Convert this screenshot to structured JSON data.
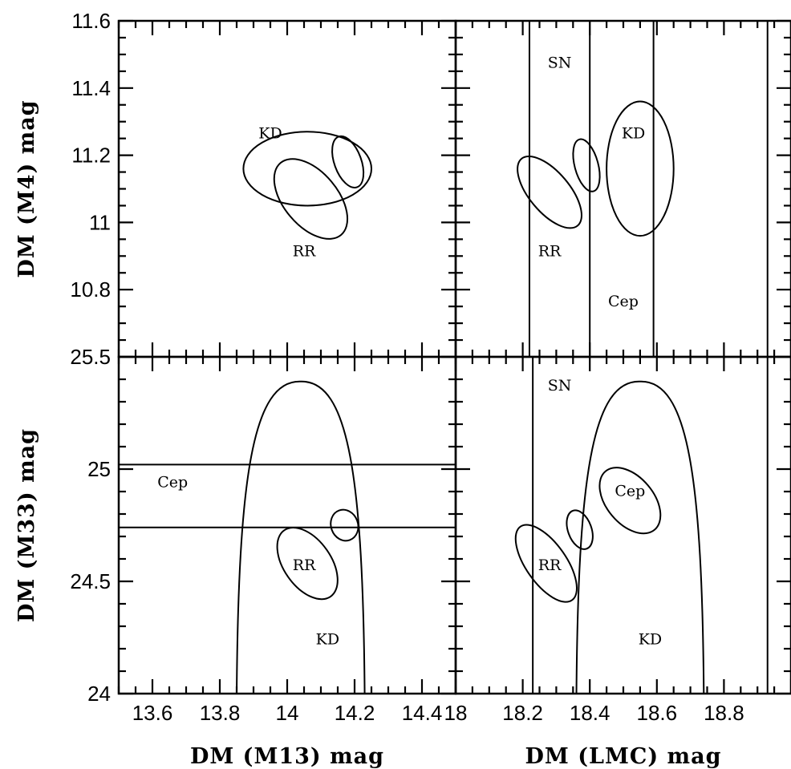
{
  "chart_data": [
    {
      "type": "contour",
      "panel": "top-left",
      "xlim": [
        13.5,
        14.5
      ],
      "ylim": [
        10.6,
        11.6
      ],
      "xticks": [],
      "yticks": [
        "10.8",
        "11",
        "11.2",
        "11.4",
        "11.6"
      ],
      "ylabel": "DM (M4) mag",
      "xlabel": "",
      "annotations": [
        {
          "text": "KD",
          "x": 13.95,
          "y": 11.25
        },
        {
          "text": "RR",
          "x": 14.05,
          "y": 10.9
        }
      ],
      "contours": [
        {
          "name": "KD",
          "cx": 14.06,
          "cy": 11.16,
          "rx": 0.19,
          "ry": 0.11,
          "angle": 0
        },
        {
          "name": "RR",
          "cx": 14.07,
          "cy": 11.07,
          "rx": 0.08,
          "ry": 0.14,
          "angle": -40
        },
        {
          "name": "RR-KD",
          "cx": 14.18,
          "cy": 11.18,
          "rx": 0.04,
          "ry": 0.08,
          "angle": -20
        }
      ]
    },
    {
      "type": "contour",
      "panel": "top-right",
      "xlim": [
        18.0,
        19.0
      ],
      "ylim": [
        10.6,
        11.6
      ],
      "xticks": [],
      "yticks": [],
      "annotations": [
        {
          "text": "SN",
          "x": 18.31,
          "y": 11.46
        },
        {
          "text": "KD",
          "x": 18.53,
          "y": 11.25
        },
        {
          "text": "RR",
          "x": 18.28,
          "y": 10.9
        },
        {
          "text": "Cep",
          "x": 18.5,
          "y": 10.75
        }
      ],
      "vertical_lines": [
        18.22,
        18.4,
        18.59,
        18.93
      ],
      "contours": [
        {
          "name": "RR",
          "cx": 18.28,
          "cy": 11.09,
          "rx": 0.06,
          "ry": 0.13,
          "angle": -40
        },
        {
          "name": "RR-KD",
          "cx": 18.39,
          "cy": 11.17,
          "rx": 0.035,
          "ry": 0.08,
          "angle": -15
        },
        {
          "name": "KD",
          "cx": 18.55,
          "cy": 11.16,
          "rx": 0.1,
          "ry": 0.2,
          "angle": 0
        }
      ]
    },
    {
      "type": "contour",
      "panel": "bottom-left",
      "xlim": [
        13.5,
        14.5
      ],
      "ylim": [
        24.0,
        25.5
      ],
      "xticks": [
        "13.6",
        "13.8",
        "14",
        "14.2",
        "14.4"
      ],
      "yticks": [
        "24",
        "24.5",
        "25",
        "25.5"
      ],
      "xlabel": "DM (M13) mag",
      "ylabel": "DM (M33) mag",
      "annotations": [
        {
          "text": "Cep",
          "x": 13.66,
          "y": 24.92
        },
        {
          "text": "RR",
          "x": 14.05,
          "y": 24.55
        },
        {
          "text": "KD",
          "x": 14.12,
          "y": 24.22
        }
      ],
      "horizontal_lines": [
        25.02,
        24.74
      ],
      "contours": [
        {
          "name": "RR",
          "cx": 14.06,
          "cy": 24.58,
          "rx": 0.07,
          "ry": 0.18,
          "angle": -35
        },
        {
          "name": "RR-Cep",
          "cx": 14.17,
          "cy": 24.75,
          "rx": 0.04,
          "ry": 0.07,
          "angle": -20
        },
        {
          "name": "KD",
          "type": "parabola",
          "vertex_x": 14.04,
          "vertex_y": 25.39
        }
      ]
    },
    {
      "type": "contour",
      "panel": "bottom-right",
      "xlim": [
        18.0,
        19.0
      ],
      "ylim": [
        24.0,
        25.5
      ],
      "xticks": [
        "18",
        "18.2",
        "18.4",
        "18.6",
        "18.8"
      ],
      "yticks": [],
      "xlabel": "DM (LMC) mag",
      "annotations": [
        {
          "text": "SN",
          "x": 18.31,
          "y": 25.35
        },
        {
          "text": "Cep",
          "x": 18.52,
          "y": 24.88
        },
        {
          "text": "RR",
          "x": 18.28,
          "y": 24.55
        },
        {
          "text": "KD",
          "x": 18.58,
          "y": 24.22
        }
      ],
      "vertical_lines": [
        18.23,
        18.93
      ],
      "contours": [
        {
          "name": "RR",
          "cx": 18.27,
          "cy": 24.58,
          "rx": 0.06,
          "ry": 0.2,
          "angle": -35
        },
        {
          "name": "RR-Cep",
          "cx": 18.37,
          "cy": 24.73,
          "rx": 0.035,
          "ry": 0.09,
          "angle": -20
        },
        {
          "name": "Cep",
          "cx": 18.52,
          "cy": 24.86,
          "rx": 0.07,
          "ry": 0.17,
          "angle": -40
        },
        {
          "name": "KD",
          "type": "parabola",
          "vertex_x": 18.55,
          "vertex_y": 25.39
        }
      ]
    }
  ]
}
